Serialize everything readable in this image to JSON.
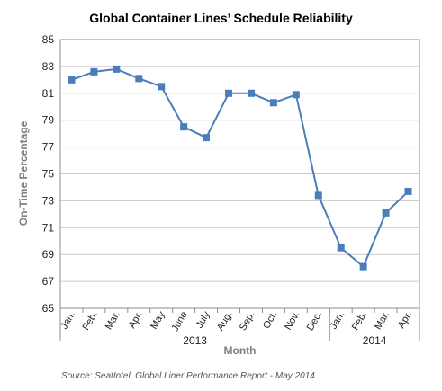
{
  "chart_data": {
    "type": "line",
    "title": "Global Container Lines’ Schedule Reliability",
    "xlabel": "Month",
    "ylabel": "On-Time Percentage",
    "ylim": [
      65,
      85
    ],
    "yticks": [
      65,
      67,
      69,
      71,
      73,
      75,
      77,
      79,
      81,
      83,
      85
    ],
    "grid": true,
    "categories": [
      "Jan.",
      "Feb.",
      "Mar.",
      "Apr.",
      "May",
      "June",
      "July",
      "Aug.",
      "Sep.",
      "Oct.",
      "Nov.",
      "Dec.",
      "Jan.",
      "Feb.",
      "Mar.",
      "Apr."
    ],
    "year_groups": [
      {
        "label": "2013",
        "start": 0,
        "end": 11
      },
      {
        "label": "2014",
        "start": 12,
        "end": 15
      }
    ],
    "series": [
      {
        "values": [
          82.0,
          82.6,
          82.8,
          82.1,
          81.5,
          78.5,
          77.7,
          81.0,
          81.0,
          80.3,
          80.9,
          73.4,
          69.5,
          68.1,
          72.1,
          73.7
        ]
      }
    ],
    "colors": {
      "line": "#4a7ebb",
      "marker": "#4a7ebb",
      "grid": "#c8c8c8"
    }
  },
  "source": "Source: SeatIntel, Global Liner Performance Report - May 2014"
}
